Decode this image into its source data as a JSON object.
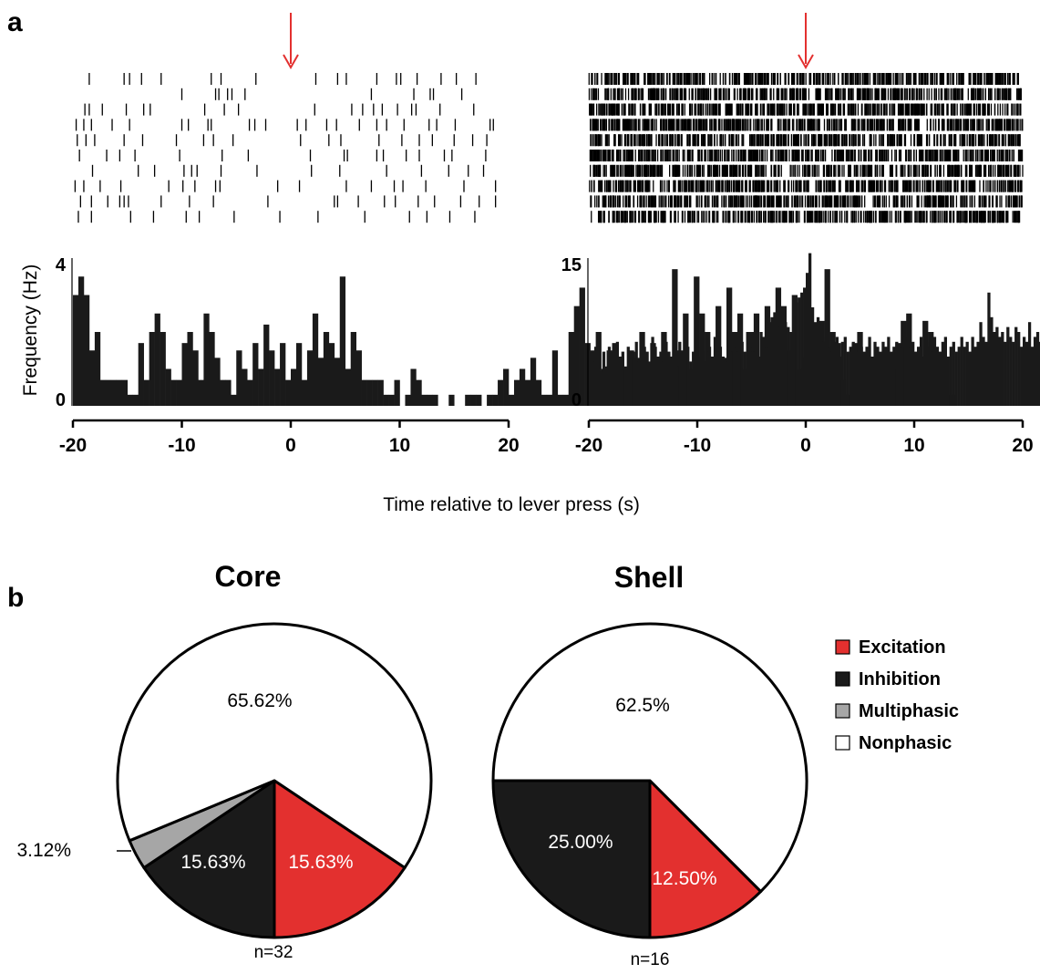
{
  "panel_labels": {
    "a": "a",
    "b": "b"
  },
  "colors": {
    "excitation": "#e3302f",
    "inhibition": "#1a1a1a",
    "multiphasic": "#a6a6a6",
    "nonphasic": "#ffffff",
    "marker": "#e3302f"
  },
  "shared_xlabel": "Time relative to lever press (s)",
  "chart_data": [
    {
      "type": "raster",
      "panel": "a-left-raster",
      "trials": 10,
      "xlim": [
        -20,
        20
      ],
      "event_marker_x": 0,
      "spike_times": [
        [
          -18.5,
          -15.3,
          -14.8,
          -13.7,
          -11.9,
          -7.3,
          -6.4,
          -3.2,
          2.3,
          4.3,
          5.1,
          7.9,
          9.7,
          10.1,
          11.6,
          13.8,
          15.2,
          17.0
        ],
        [
          -10.0,
          -6.9,
          -6.6,
          -5.8,
          -5.4,
          -4.2,
          7.4,
          11.3,
          12.8,
          13.1,
          15.7
        ],
        [
          -18.9,
          -18.5,
          -17.3,
          -15.1,
          -13.5,
          -12.9,
          -7.9,
          -6.1,
          -4.8,
          2.2,
          5.6,
          6.6,
          7.6,
          8.4,
          9.8,
          11.1,
          11.5,
          13.7,
          16.8
        ],
        [
          -19.7,
          -19.0,
          -18.3,
          -16.4,
          -14.8,
          -10.0,
          -9.4,
          -7.6,
          -7.3,
          -3.8,
          -3.3,
          -2.3,
          0.6,
          1.4,
          3.3,
          4.2,
          6.3,
          7.9,
          8.8,
          10.4,
          12.7,
          13.4,
          15.1,
          18.3,
          18.6
        ],
        [
          -19.6,
          -18.8,
          -18.0,
          -15.3,
          -13.6,
          -10.5,
          -8.0,
          -7.1,
          -5.3,
          0.9,
          3.5,
          4.6,
          8.1,
          10.2,
          11.8,
          13.0,
          15.0,
          16.7,
          18.0
        ],
        [
          -19.4,
          -16.9,
          -15.7,
          -14.3,
          -10.2,
          -6.3,
          -3.9,
          1.8,
          4.9,
          5.2,
          7.9,
          8.5,
          10.6,
          11.8,
          14.1,
          14.8,
          17.9
        ],
        [
          -18.2,
          -14.0,
          -12.5,
          -9.8,
          -9.1,
          -8.6,
          -6.4,
          -3.1,
          1.9,
          4.5,
          8.8,
          12.0,
          14.5,
          16.3,
          17.7
        ],
        [
          -19.8,
          -19.0,
          -17.5,
          -15.6,
          -11.2,
          -9.9,
          -8.8,
          -6.9,
          -6.5,
          -1.2,
          0.8,
          5.1,
          7.4,
          9.5,
          10.3,
          12.4,
          15.9,
          18.8
        ],
        [
          -19.3,
          -18.3,
          -16.8,
          -15.7,
          -15.3,
          -14.9,
          -11.9,
          -9.3,
          -7.1,
          -2.1,
          4.0,
          4.3,
          6.2,
          8.6,
          9.6,
          11.7,
          13.2,
          15.6,
          17.3,
          18.8
        ],
        [
          -19.5,
          -18.3,
          -14.7,
          -12.6,
          -9.6,
          -8.4,
          -5.2,
          -1.0,
          2.5,
          6.8,
          10.9,
          12.5,
          14.6,
          16.9
        ]
      ]
    },
    {
      "type": "bar",
      "panel": "a-left-histogram",
      "xlim": [
        -20,
        20
      ],
      "ylim": [
        0,
        4
      ],
      "yticks": [
        0,
        4
      ],
      "ylabel": "Frequency (Hz)",
      "bin_width": 0.5,
      "values": [
        3.0,
        3.5,
        3.0,
        1.5,
        2.0,
        0.7,
        0.7,
        0.7,
        0.7,
        0.7,
        0.3,
        0.3,
        1.7,
        0.7,
        2.0,
        2.5,
        2.0,
        1.0,
        0.7,
        0.7,
        1.7,
        2.0,
        1.5,
        0.7,
        2.5,
        2.0,
        1.3,
        0.7,
        0.7,
        0.3,
        1.5,
        1.0,
        0.7,
        1.7,
        1.0,
        2.2,
        1.5,
        1.0,
        1.7,
        0.7,
        1.0,
        1.7,
        0.7,
        1.5,
        2.5,
        1.3,
        2.0,
        1.7,
        1.3,
        3.5,
        1.0,
        2.0,
        1.5,
        0.7,
        0.7,
        0.7,
        0.7,
        0.3,
        0.3,
        0.7,
        0.0,
        0.3,
        1.0,
        0.7,
        0.3,
        0.3,
        0.3,
        0.0,
        0.0,
        0.3,
        0.0,
        0.0,
        0.3,
        0.3,
        0.3,
        0.0,
        0.3,
        0.3,
        0.7,
        1.0,
        0.3,
        0.7,
        1.0,
        0.7,
        1.3,
        0.7,
        0.3,
        0.3,
        1.5,
        0.3,
        0.3,
        2.0,
        2.7,
        3.2,
        1.7,
        1.5,
        2.0,
        1.0,
        1.5,
        1.7,
        0.7,
        1.0,
        1.5,
        1.3,
        2.0,
        1.0,
        1.7,
        0.7,
        2.0,
        1.3,
        3.7,
        1.5,
        2.5,
        1.0,
        3.5,
        2.5,
        2.0,
        1.0,
        2.7,
        1.3,
        3.2,
        2.0,
        2.5,
        1.0,
        2.0,
        2.5,
        1.3,
        2.7,
        1.7,
        3.2,
        2.7,
        1.5,
        3.0,
        1.0,
        1.3,
        1.7,
        1.3,
        2.3,
        3.7,
        2.0,
        1.7,
        0.7,
        0.3,
        1.7,
        2.0,
        1.3,
        0.7,
        0.7,
        0.3,
        1.3,
        1.0,
        1.7,
        2.3,
        2.5,
        0.7,
        0.7,
        2.3,
        2.0,
        0.7,
        0.7,
        0.3,
        0.3,
        0.0,
        0.0,
        0.0,
        0.0,
        0.0,
        0.0,
        0.0,
        0.0,
        0.0,
        0.0,
        0.0,
        0.0,
        0.0,
        0.0,
        0.0,
        0.0
      ],
      "xticks": [
        -20,
        -10,
        0,
        10,
        20
      ]
    },
    {
      "type": "raster",
      "panel": "a-right-raster",
      "trials": 10,
      "xlim": [
        -20,
        20
      ],
      "event_marker_x": 0,
      "firing_rate_hz": 11,
      "seed": 7
    },
    {
      "type": "bar",
      "panel": "a-right-histogram",
      "xlim": [
        -20,
        20
      ],
      "ylim": [
        0,
        15
      ],
      "yticks": [
        0,
        15
      ],
      "xticks": [
        -20,
        -10,
        0,
        10,
        20
      ],
      "bin_width": 0.25,
      "values": [
        5.5,
        4.5,
        6.0,
        5.0,
        3.5,
        5.5,
        4.0,
        6.0,
        5.5,
        4.5,
        6.5,
        5.0,
        5.5,
        4.0,
        6.0,
        5.0,
        5.5,
        6.5,
        4.5,
        5.0,
        6.0,
        5.5,
        4.5,
        7.0,
        6.0,
        5.0,
        5.5,
        4.5,
        6.5,
        5.5,
        5.0,
        6.0,
        4.0,
        6.5,
        5.5,
        5.0,
        6.0,
        4.5,
        5.5,
        6.5,
        5.0,
        6.0,
        4.5,
        5.5,
        6.0,
        5.0,
        7.0,
        5.5,
        6.0,
        5.0,
        4.5,
        6.5,
        5.5,
        6.0,
        5.5,
        7.0,
        6.5,
        5.5,
        7.5,
        6.0,
        5.5,
        6.5,
        5.0,
        7.5,
        7.0,
        6.0,
        8.5,
        9.0,
        9.5,
        9.0,
        8.0,
        9.5,
        8.5,
        8.0,
        7.5,
        9.0,
        10.5,
        11.0,
        11.5,
        12.0,
        13.5,
        15.5,
        10.0,
        8.5,
        9.0,
        7.5,
        6.5,
        7.0,
        6.0,
        5.5,
        6.5,
        7.0,
        5.0,
        6.5,
        7.0,
        5.5,
        6.0,
        6.5,
        5.5,
        7.0,
        6.0,
        5.5,
        6.0,
        7.0,
        5.0,
        6.5,
        6.0,
        5.5,
        6.5,
        6.0,
        7.0,
        5.5,
        6.0,
        6.5,
        5.0,
        6.0,
        7.0,
        5.5,
        6.0,
        6.5,
        5.5,
        6.0,
        7.0,
        5.0,
        6.5,
        6.0,
        5.5,
        7.0,
        6.0,
        5.5,
        6.5,
        7.0,
        5.0,
        6.0,
        6.5,
        5.5,
        6.0,
        7.0,
        6.0,
        6.5,
        5.5,
        7.0,
        6.0,
        6.5,
        8.5,
        7.0,
        6.5,
        11.5,
        9.0,
        7.5,
        8.0,
        7.0,
        7.5,
        6.5,
        8.0,
        7.0,
        6.5,
        8.0,
        7.5,
        6.0,
        7.0,
        6.5,
        8.5,
        6.0,
        7.0,
        7.5,
        6.5,
        7.0,
        8.0
      ]
    },
    {
      "type": "pie",
      "panel": "b-core",
      "title": "Core",
      "n_label": "n=32",
      "slices": [
        {
          "name": "Excitation",
          "value": 15.63,
          "label": "15.63%"
        },
        {
          "name": "Inhibition",
          "value": 15.63,
          "label": "15.63%"
        },
        {
          "name": "Multiphasic",
          "value": 3.12,
          "label": "3.12%"
        },
        {
          "name": "Nonphasic",
          "value": 65.62,
          "label": "65.62%"
        }
      ]
    },
    {
      "type": "pie",
      "panel": "b-shell",
      "title": "Shell",
      "n_label": "n=16",
      "slices": [
        {
          "name": "Excitation",
          "value": 12.5,
          "label": "12.50%"
        },
        {
          "name": "Inhibition",
          "value": 25.0,
          "label": "25.00%"
        },
        {
          "name": "Nonphasic",
          "value": 62.5,
          "label": "62.5%"
        }
      ]
    }
  ],
  "legend": {
    "placement": "right",
    "items": [
      {
        "name": "Excitation",
        "color": "#e3302f"
      },
      {
        "name": "Inhibition",
        "color": "#1a1a1a"
      },
      {
        "name": "Multiphasic",
        "color": "#a6a6a6"
      },
      {
        "name": "Nonphasic",
        "color": "#ffffff"
      }
    ]
  }
}
